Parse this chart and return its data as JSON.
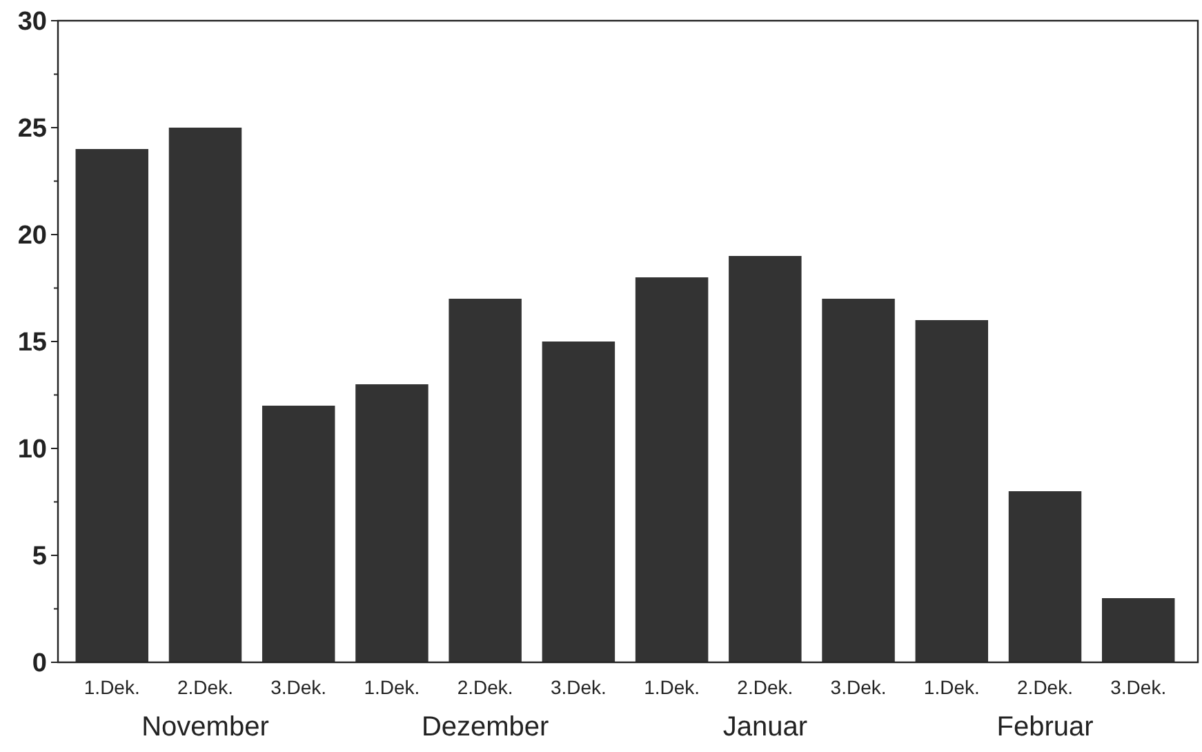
{
  "chart_data": {
    "type": "bar",
    "categories": [
      "1.Dek.",
      "2.Dek.",
      "3.Dek.",
      "1.Dek.",
      "2.Dek.",
      "3.Dek.",
      "1.Dek.",
      "2.Dek.",
      "3.Dek.",
      "1.Dek.",
      "2.Dek.",
      "3.Dek."
    ],
    "values": [
      24,
      25,
      12,
      13,
      17,
      15,
      18,
      19,
      17,
      16,
      8,
      3
    ],
    "color": "#333333",
    "ylim": [
      0,
      30
    ],
    "yticks": [
      0,
      5,
      10,
      15,
      20,
      25,
      30
    ],
    "grid": false,
    "annotations": [
      "November",
      "Dezember",
      "Januar",
      "Februar"
    ]
  }
}
